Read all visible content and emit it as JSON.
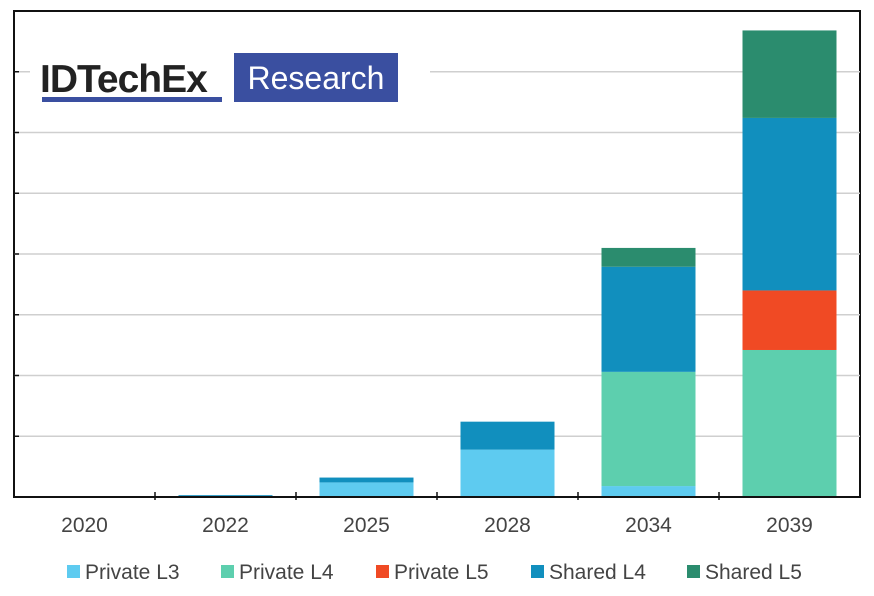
{
  "branding": {
    "logo_primary": "IDTechEx",
    "logo_secondary": "Research",
    "logo_primary_color": "#222222",
    "logo_secondary_bg": "#3a4fa0",
    "logo_underline_color": "#3a4fa0"
  },
  "chart_data": {
    "type": "bar",
    "stacked": true,
    "title": "",
    "xlabel": "",
    "ylabel": "",
    "ylim": [
      0,
      8
    ],
    "y_tick_labels_shown": false,
    "grid": true,
    "legend_position": "bottom",
    "categories": [
      "2020",
      "2022",
      "2025",
      "2028",
      "2034",
      "2039"
    ],
    "series": [
      {
        "name": "Private L3",
        "color": "#5ecbf0",
        "values": [
          0,
          0.01,
          0.24,
          0.78,
          0.18,
          0
        ]
      },
      {
        "name": "Private L4",
        "color": "#5dcfae",
        "values": [
          0,
          0,
          0,
          0,
          1.88,
          2.42
        ]
      },
      {
        "name": "Private L5",
        "color": "#f04a24",
        "values": [
          0,
          0,
          0,
          0,
          0,
          0.98
        ]
      },
      {
        "name": "Shared L4",
        "color": "#118fbe",
        "values": [
          0,
          0.02,
          0.08,
          0.46,
          1.73,
          2.84
        ]
      },
      {
        "name": "Shared L5",
        "color": "#2b8c6e",
        "values": [
          0,
          0,
          0,
          0,
          0.31,
          1.44
        ]
      }
    ]
  }
}
